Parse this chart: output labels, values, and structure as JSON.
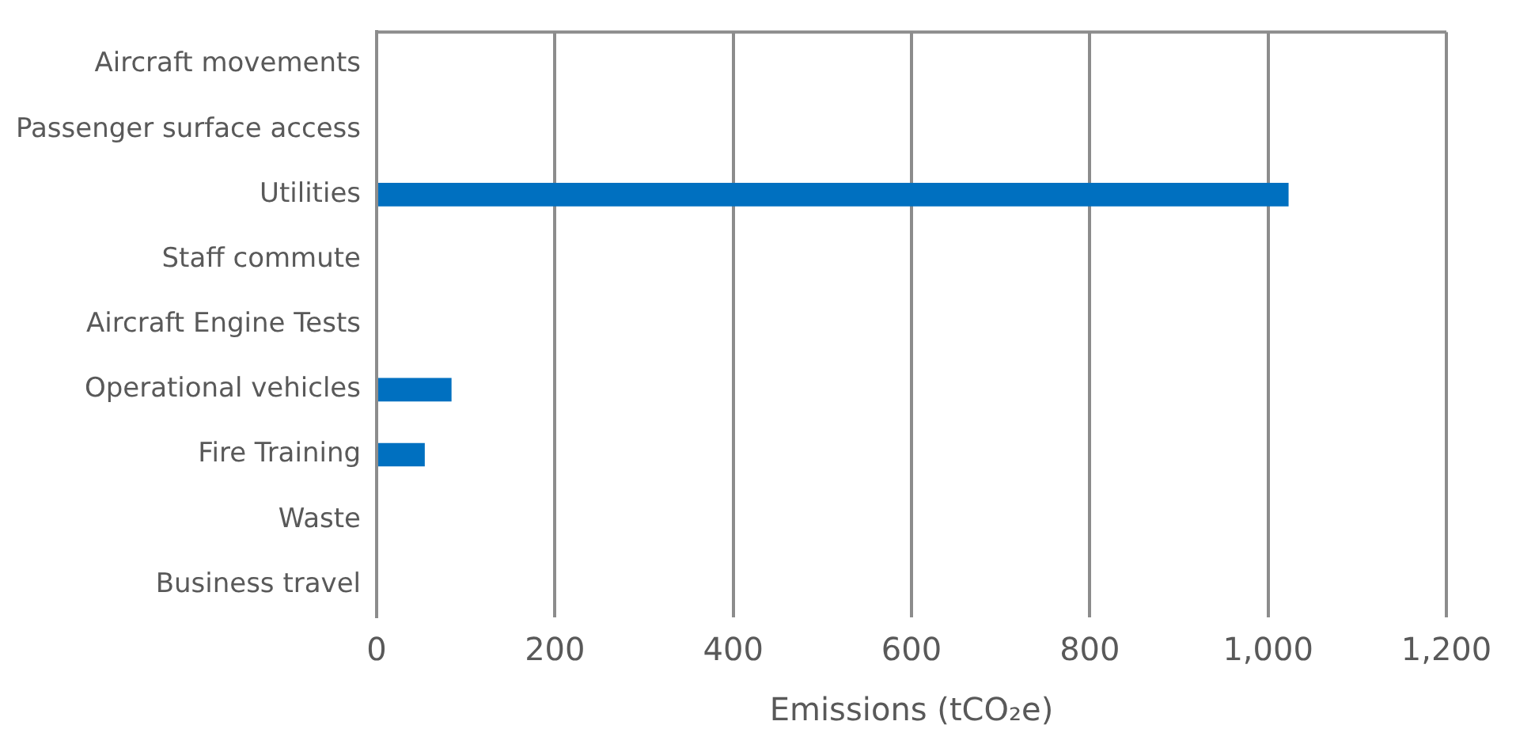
{
  "chart_data": {
    "type": "bar",
    "orientation": "horizontal",
    "xlabel": "Emissions (tCO₂e)",
    "categories": [
      "Aircraft movements",
      "Passenger surface access",
      "Utilities",
      "Staff commute",
      "Aircraft Engine Tests",
      "Operational vehicles",
      "Fire Training",
      "Waste",
      "Business travel"
    ],
    "values": [
      0,
      0,
      1023,
      0,
      0,
      84,
      54,
      0,
      0
    ],
    "color": "#0070c0",
    "xlim": [
      0,
      1200
    ],
    "xticks": [
      {
        "value": 0,
        "label": "0"
      },
      {
        "value": 200,
        "label": "200"
      },
      {
        "value": 400,
        "label": "400"
      },
      {
        "value": 600,
        "label": "600"
      },
      {
        "value": 800,
        "label": "800"
      },
      {
        "value": 1000,
        "label": "1,000"
      },
      {
        "value": 1200,
        "label": "1,200"
      }
    ],
    "grid": "x",
    "legend": false
  }
}
